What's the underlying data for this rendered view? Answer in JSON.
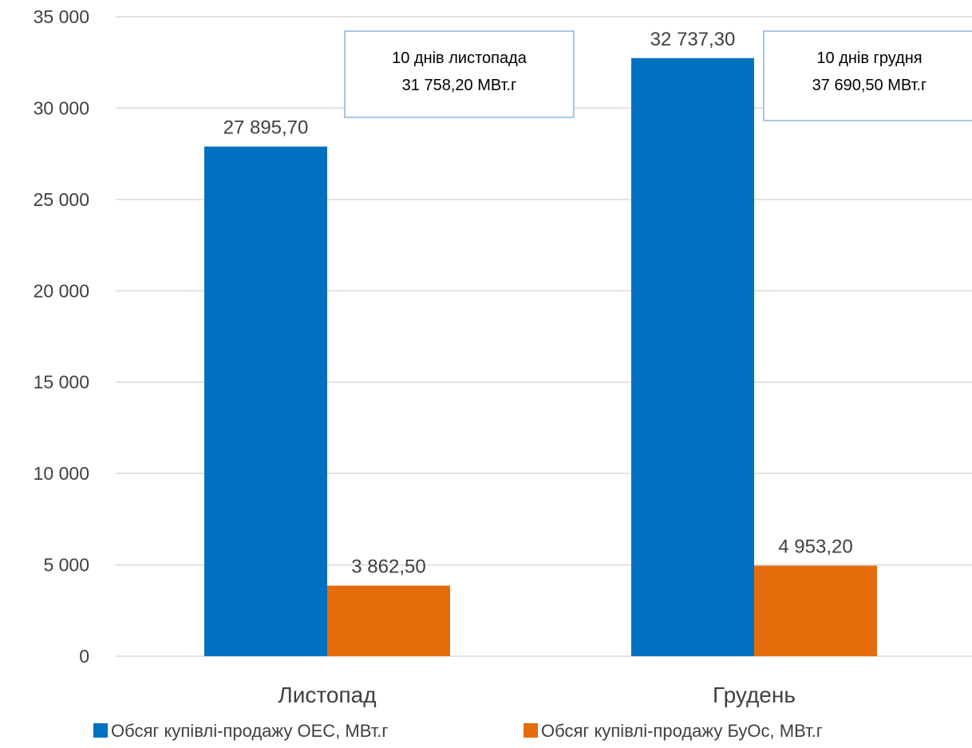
{
  "chart_data": {
    "type": "bar",
    "categories": [
      "Листопад",
      "Грудень"
    ],
    "series": [
      {
        "name": "Обсяг купівлі-продажу ОЕС, МВт.г",
        "values": [
          27895.7,
          32737.3
        ],
        "labels": [
          "27 895,70",
          "32 737,30"
        ],
        "color": "#0070C0"
      },
      {
        "name": "Обсяг купівлі-продажу БуОс, МВт.г",
        "values": [
          3862.5,
          4953.2
        ],
        "labels": [
          "3 862,50",
          "4 953,20"
        ],
        "color": "#E46C0A"
      }
    ],
    "ylim": [
      0,
      35000
    ],
    "yticks": [
      0,
      5000,
      10000,
      15000,
      20000,
      25000,
      30000,
      35000
    ],
    "ytick_labels": [
      "0",
      "5 000",
      "10 000",
      "15 000",
      "20 000",
      "25 000",
      "30 000",
      "35 000"
    ],
    "grid": true,
    "legend_position": "bottom",
    "annotations": [
      {
        "category": "Листопад",
        "line1": "10 днів листопада",
        "line2": "31 758,20 МВт.г"
      },
      {
        "category": "Грудень",
        "line1": "10 днів грудня",
        "line2": "37 690,50 МВт.г"
      }
    ],
    "colors": {
      "grid": "#D9D9D9",
      "text": "#404040",
      "callout_border": "#8EB4E3"
    }
  }
}
